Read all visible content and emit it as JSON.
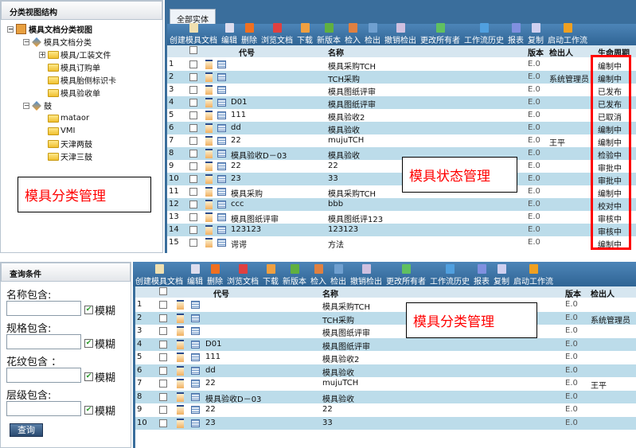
{
  "top": {
    "tree_title": "分类视图结构",
    "tree": [
      {
        "label": "模具文档分类视图",
        "level": 0,
        "toggle": "-",
        "icon": "root-icon"
      },
      {
        "label": "模具文档分类",
        "level": 1,
        "toggle": "-",
        "icon": "category-icon"
      },
      {
        "label": "模具/工装文件",
        "level": 2,
        "toggle": "+",
        "icon": "folder-icon"
      },
      {
        "label": "模具订购单",
        "level": 2,
        "toggle": "",
        "icon": "folder-icon"
      },
      {
        "label": "模具胎侧标识卡",
        "level": 2,
        "toggle": "",
        "icon": "folder-icon"
      },
      {
        "label": "模具验收单",
        "level": 2,
        "toggle": "",
        "icon": "folder-icon"
      },
      {
        "label": "鼓",
        "level": 1,
        "toggle": "-",
        "icon": "category-icon"
      },
      {
        "label": "mataor",
        "level": 2,
        "toggle": "",
        "icon": "folder-icon"
      },
      {
        "label": "VMI",
        "level": 2,
        "toggle": "",
        "icon": "folder-icon"
      },
      {
        "label": "天津两鼓",
        "level": 2,
        "toggle": "",
        "icon": "folder-icon"
      },
      {
        "label": "天津三鼓",
        "level": 2,
        "toggle": "",
        "icon": "folder-icon"
      }
    ],
    "tab": "全部实体",
    "toolbar": [
      "创建模具文档",
      "编辑",
      "删除",
      "浏览文档",
      "下载",
      "新版本",
      "检入",
      "检出",
      "撤销检出",
      "更改所有者",
      "工作流历史",
      "报表",
      "复制",
      "启动工作流"
    ],
    "columns": {
      "code": "代号",
      "name": "名称",
      "version": "版本",
      "checkout": "检出人",
      "lifecycle": "生命周期"
    },
    "rows": [
      {
        "n": "1",
        "code": "",
        "name": "模具采购TCH",
        "ver": "E.0",
        "by": "",
        "life": "编制中"
      },
      {
        "n": "2",
        "code": "",
        "name": "TCH采购",
        "ver": "E.0",
        "by": "系统管理员",
        "life": "编制中"
      },
      {
        "n": "3",
        "code": "",
        "name": "模具图纸评审",
        "ver": "E.0",
        "by": "",
        "life": "已发布"
      },
      {
        "n": "4",
        "code": "D01",
        "name": "模具图纸评审",
        "ver": "E.0",
        "by": "",
        "life": "已发布"
      },
      {
        "n": "5",
        "code": "111",
        "name": "模具验收2",
        "ver": "E.0",
        "by": "",
        "life": "已取消"
      },
      {
        "n": "6",
        "code": "dd",
        "name": "模具验收",
        "ver": "E.0",
        "by": "",
        "life": "编制中"
      },
      {
        "n": "7",
        "code": "22",
        "name": "mujuTCH",
        "ver": "E.0",
        "by": "王平",
        "life": "编制中"
      },
      {
        "n": "8",
        "code": "模具验收D－03",
        "name": "模具验收",
        "ver": "E.0",
        "by": "",
        "life": "检验中"
      },
      {
        "n": "9",
        "code": "22",
        "name": "22",
        "ver": "E.0",
        "by": "",
        "life": "审批中"
      },
      {
        "n": "10",
        "code": "23",
        "name": "33",
        "ver": "E.0",
        "by": "",
        "life": "审批中"
      },
      {
        "n": "11",
        "code": "模具采购",
        "name": "模具采购TCH",
        "ver": "E.0",
        "by": "",
        "life": "编制中"
      },
      {
        "n": "12",
        "code": "ccc",
        "name": "bbb",
        "ver": "E.0",
        "by": "",
        "life": "校对中"
      },
      {
        "n": "13",
        "code": "模具图纸评审",
        "name": "模具图纸评123",
        "ver": "E.0",
        "by": "",
        "life": "审核中"
      },
      {
        "n": "14",
        "code": "123123",
        "name": "123123",
        "ver": "E.0",
        "by": "",
        "life": "审核中"
      },
      {
        "n": "15",
        "code": "谔谔",
        "name": "方法",
        "ver": "E.0",
        "by": "",
        "life": "编制中"
      }
    ],
    "note_left": "模具分类管理",
    "note_right": "模具状态管理"
  },
  "bottom": {
    "query_title": "查询条件",
    "fields": [
      {
        "label": "名称包含:",
        "value": "",
        "fuzzy": "模糊"
      },
      {
        "label": "规格包含:",
        "value": "",
        "fuzzy": "模糊"
      },
      {
        "label": "花纹包含 ：",
        "value": "",
        "fuzzy": "模糊"
      },
      {
        "label": "层级包含:",
        "value": "",
        "fuzzy": "模糊"
      }
    ],
    "query_button": "查询",
    "toolbar": [
      "创建模具文档",
      "编辑",
      "删除",
      "浏览文档",
      "下载",
      "新版本",
      "检入",
      "检出",
      "撤销检出",
      "更改所有者",
      "工作流历史",
      "报表",
      "复制",
      "启动工作流"
    ],
    "columns": {
      "code": "代号",
      "name": "名称",
      "version": "版本",
      "checkout": "检出人"
    },
    "rows": [
      {
        "n": "1",
        "code": "",
        "name": "模具采购TCH",
        "ver": "E.0",
        "by": ""
      },
      {
        "n": "2",
        "code": "",
        "name": "TCH采购",
        "ver": "E.0",
        "by": "系统管理员"
      },
      {
        "n": "3",
        "code": "",
        "name": "模具图纸评审",
        "ver": "E.0",
        "by": ""
      },
      {
        "n": "4",
        "code": "D01",
        "name": "模具图纸评审",
        "ver": "E.0",
        "by": ""
      },
      {
        "n": "5",
        "code": "111",
        "name": "模具验收2",
        "ver": "E.0",
        "by": ""
      },
      {
        "n": "6",
        "code": "dd",
        "name": "模具验收",
        "ver": "E.0",
        "by": ""
      },
      {
        "n": "7",
        "code": "22",
        "name": "mujuTCH",
        "ver": "E.0",
        "by": "王平"
      },
      {
        "n": "8",
        "code": "模具验收D－03",
        "name": "模具验收",
        "ver": "E.0",
        "by": ""
      },
      {
        "n": "9",
        "code": "22",
        "name": "22",
        "ver": "E.0",
        "by": ""
      },
      {
        "n": "10",
        "code": "23",
        "name": "33",
        "ver": "E.0",
        "by": ""
      }
    ],
    "note": "模具分类管理"
  },
  "colors": {
    "accent_blue": "#3a6e9c",
    "row_alt": "#bcdcea",
    "highlight": "#ff0000"
  }
}
